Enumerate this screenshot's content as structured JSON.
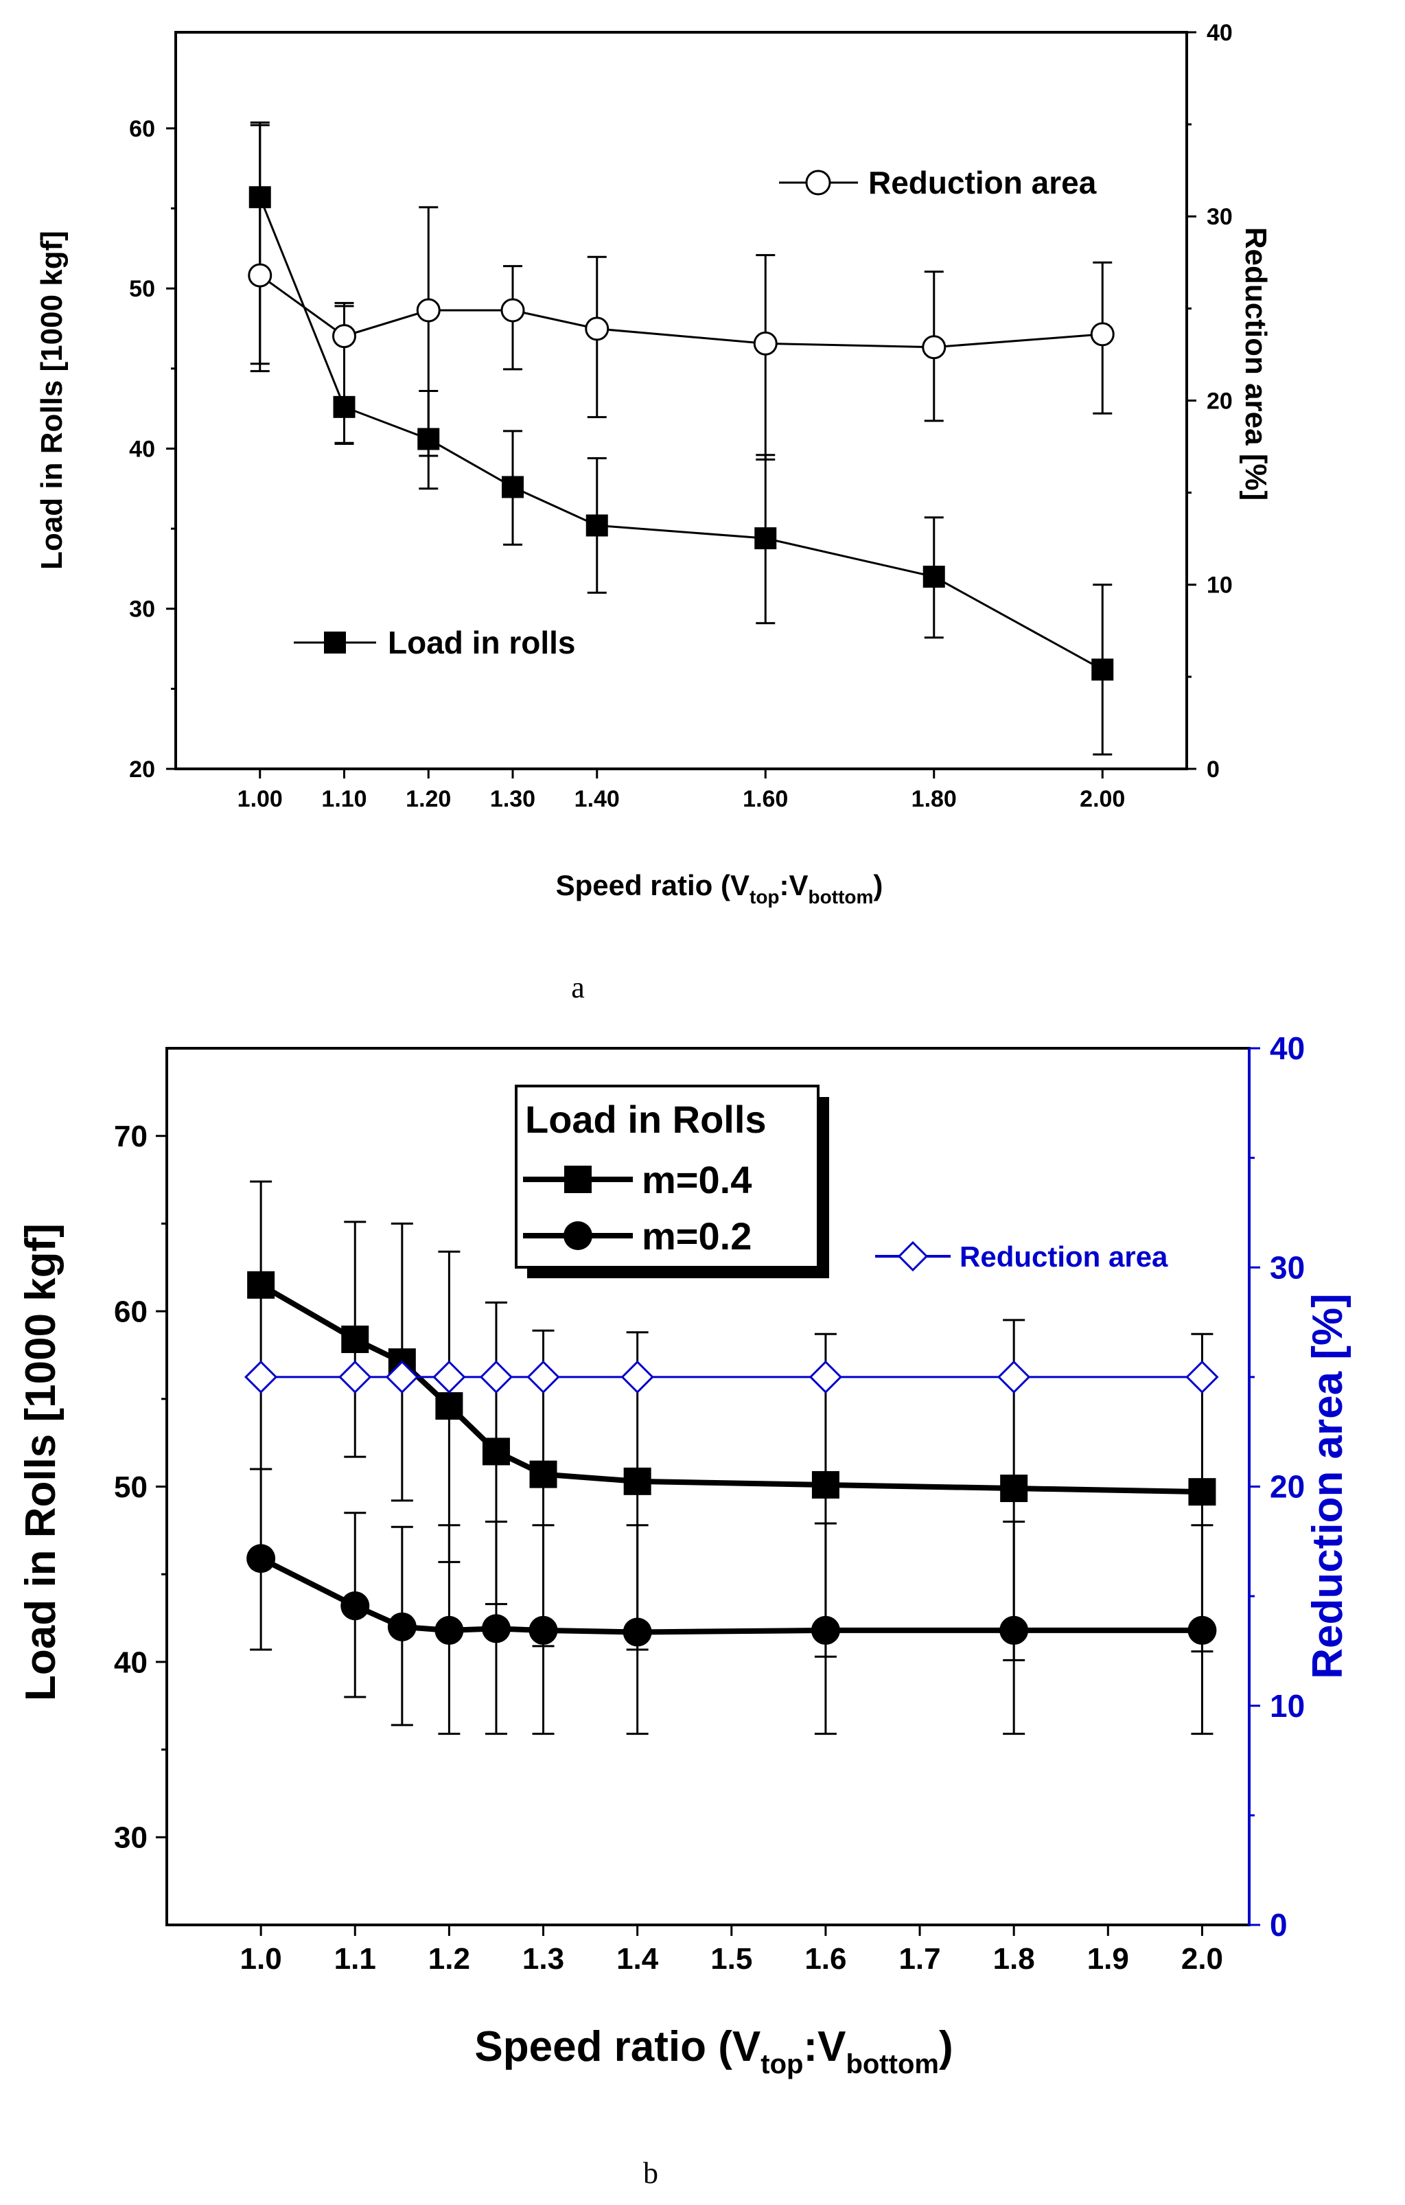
{
  "chart_data": [
    {
      "id": "a",
      "type": "line",
      "caption": "a",
      "xlabel": "Speed ratio (V",
      "xlabel_sub1": "top",
      "xlabel_mid": ":V",
      "xlabel_sub2": "bottom",
      "xlabel_end": ")",
      "ylabel": "Load in Rolls [1000 kgf]",
      "ylabel_right": "Reduction area [%]",
      "xlim": [
        0.9,
        2.1
      ],
      "ylim": [
        20,
        66
      ],
      "ylim_right": [
        0,
        40
      ],
      "xticks": [
        1.0,
        1.1,
        1.2,
        1.3,
        1.4,
        1.6,
        1.8,
        2.0
      ],
      "xtick_labels": [
        "1.00",
        "1.10",
        "1.20",
        "1.30",
        "1.40",
        "1.60",
        "1.80",
        "2.00"
      ],
      "yticks": [
        20,
        30,
        40,
        50,
        60
      ],
      "yticks_right": [
        0,
        10,
        20,
        30,
        40
      ],
      "series": [
        {
          "name": "Load in rolls",
          "axis": "left",
          "marker": "filled-square",
          "x": [
            1.0,
            1.1,
            1.2,
            1.3,
            1.4,
            1.6,
            1.8,
            2.0
          ],
          "y": [
            55.7,
            42.6,
            40.6,
            37.6,
            35.2,
            34.4,
            32.0,
            26.2
          ],
          "err_low": [
            45.3,
            40.3,
            37.5,
            34.0,
            31.0,
            29.1,
            28.2,
            20.9
          ],
          "err_high": [
            60.2,
            48.9,
            43.6,
            41.1,
            39.4,
            39.6,
            35.7,
            31.5
          ]
        },
        {
          "name": "Reduction area",
          "axis": "right",
          "marker": "open-circle",
          "x": [
            1.0,
            1.1,
            1.2,
            1.3,
            1.4,
            1.6,
            1.8,
            2.0
          ],
          "y": [
            26.8,
            23.5,
            24.9,
            24.9,
            23.9,
            23.1,
            22.9,
            23.6
          ],
          "err_low": [
            21.6,
            17.7,
            17.0,
            21.7,
            19.1,
            16.8,
            18.9,
            19.3
          ],
          "err_high": [
            35.1,
            25.3,
            30.5,
            27.3,
            27.8,
            27.9,
            27.0,
            27.5
          ]
        }
      ],
      "legend": [
        "Reduction area",
        "Load in rolls"
      ]
    },
    {
      "id": "b",
      "type": "line",
      "caption": "b",
      "xlabel": "Speed ratio (V",
      "xlabel_sub1": "top",
      "xlabel_mid": ":V",
      "xlabel_sub2": "bottom",
      "xlabel_end": ")",
      "ylabel": "Load in Rolls [1000 kgf]",
      "ylabel_right": "Reduction area [%]",
      "xlim": [
        0.9,
        2.05
      ],
      "ylim": [
        25,
        75
      ],
      "ylim_right": [
        0,
        40
      ],
      "xticks": [
        1.0,
        1.1,
        1.2,
        1.3,
        1.4,
        1.5,
        1.6,
        1.7,
        1.8,
        1.9,
        2.0
      ],
      "xtick_labels": [
        "1.0",
        "1.1",
        "1.2",
        "1.3",
        "1.4",
        "1.5",
        "1.6",
        "1.7",
        "1.8",
        "1.9",
        "2.0"
      ],
      "yticks": [
        30,
        40,
        50,
        60,
        70
      ],
      "yticks_right": [
        0,
        10,
        20,
        30,
        40
      ],
      "legend_title": "Load in Rolls",
      "series": [
        {
          "name": "m=0.4",
          "axis": "left",
          "marker": "filled-square",
          "x": [
            1.0,
            1.1,
            1.15,
            1.2,
            1.25,
            1.3,
            1.4,
            1.6,
            1.8,
            2.0
          ],
          "y": [
            61.5,
            58.4,
            57.1,
            54.6,
            52.0,
            50.7,
            50.3,
            50.1,
            49.9,
            49.7
          ],
          "err_low": [
            51.0,
            51.7,
            49.2,
            45.7,
            43.3,
            40.9,
            40.7,
            40.3,
            40.1,
            40.6
          ],
          "err_high": [
            67.4,
            65.1,
            65.0,
            63.4,
            60.5,
            58.9,
            58.8,
            58.7,
            59.5,
            58.7
          ]
        },
        {
          "name": "m=0.2",
          "axis": "left",
          "marker": "filled-circle",
          "x": [
            1.0,
            1.1,
            1.15,
            1.2,
            1.25,
            1.3,
            1.4,
            1.6,
            1.8,
            2.0
          ],
          "y": [
            45.9,
            43.2,
            42.0,
            41.8,
            41.9,
            41.8,
            41.7,
            41.8,
            41.8,
            41.8
          ],
          "err_low": [
            40.7,
            38.0,
            36.4,
            35.9,
            35.9,
            35.9,
            35.9,
            35.9,
            35.9,
            35.9
          ],
          "err_high": [
            51.0,
            48.5,
            47.7,
            47.8,
            48.0,
            47.8,
            47.8,
            47.9,
            48.0,
            47.8
          ]
        },
        {
          "name": "Reduction area",
          "axis": "right",
          "marker": "open-diamond",
          "color": "#0000cc",
          "x": [
            1.0,
            1.1,
            1.15,
            1.2,
            1.25,
            1.3,
            1.4,
            1.6,
            1.8,
            2.0
          ],
          "y": [
            25,
            25,
            25,
            25,
            25,
            25,
            25,
            25,
            25,
            25
          ]
        }
      ],
      "legend": [
        "m=0.4",
        "m=0.2",
        "Reduction area"
      ]
    }
  ],
  "colors": {
    "axis": "#000000",
    "reduction_b": "#0000cc"
  }
}
